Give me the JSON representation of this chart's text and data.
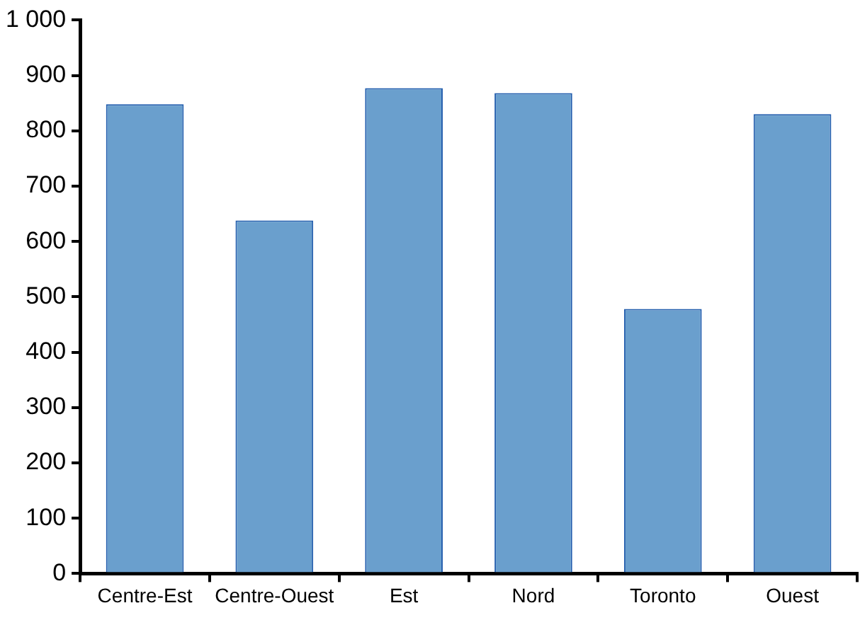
{
  "chart_data": {
    "type": "bar",
    "categories": [
      "Centre-Est",
      "Centre-Ouest",
      "Est",
      "Nord",
      "Toronto",
      "Ouest"
    ],
    "values": [
      848,
      638,
      877,
      868,
      478,
      830
    ],
    "color": "#6a9fcd",
    "ylim": [
      0,
      1000
    ],
    "yticks": [
      0,
      100,
      200,
      300,
      400,
      500,
      600,
      700,
      800,
      900,
      {
        "value": 1000,
        "label": "1 000"
      }
    ],
    "grid": false,
    "legend": false
  }
}
